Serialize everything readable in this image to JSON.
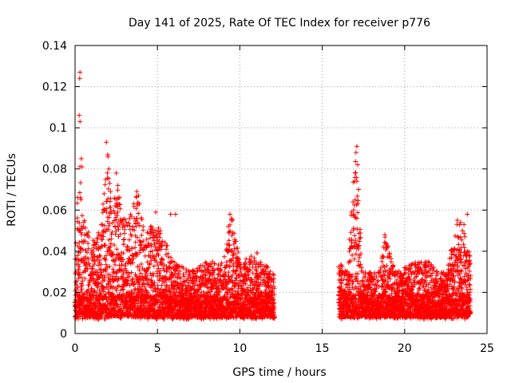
{
  "chart_data": {
    "type": "scatter",
    "title": "Day 141 of 2025, Rate Of TEC Index for receiver p776",
    "xlabel": "GPS time / hours",
    "ylabel": "ROTI / TECUs",
    "xlim": [
      0,
      25
    ],
    "ylim": [
      0,
      0.14
    ],
    "xticks": [
      0,
      5,
      10,
      15,
      20,
      25
    ],
    "yticks": [
      0,
      0.02,
      0.04,
      0.06,
      0.08,
      0.1,
      0.12,
      0.14
    ],
    "xtick_labels": [
      "0",
      "5",
      "10",
      "15",
      "20",
      "25"
    ],
    "ytick_labels": [
      "0",
      "0.02",
      "0.04",
      "0.06",
      "0.08",
      "0.1",
      "0.12",
      "0.14"
    ],
    "grid": true,
    "marker": "+",
    "color": "#ff0000",
    "series": [
      {
        "name": "ROTI",
        "x_step": 0.0833,
        "segments": [
          {
            "x_start": 0.0,
            "x_end": 12.1
          },
          {
            "x_start": 16.0,
            "x_end": 24.0
          }
        ],
        "envelope": [
          [
            0.0,
            0.045
          ],
          [
            0.3,
            0.085
          ],
          [
            0.4,
            0.06
          ],
          [
            1.0,
            0.045
          ],
          [
            1.5,
            0.05
          ],
          [
            2.0,
            0.09
          ],
          [
            2.2,
            0.06
          ],
          [
            2.5,
            0.075
          ],
          [
            3.0,
            0.055
          ],
          [
            3.8,
            0.068
          ],
          [
            4.2,
            0.05
          ],
          [
            5.0,
            0.055
          ],
          [
            6.0,
            0.035
          ],
          [
            7.0,
            0.03
          ],
          [
            8.0,
            0.035
          ],
          [
            9.0,
            0.035
          ],
          [
            9.5,
            0.058
          ],
          [
            10.0,
            0.035
          ],
          [
            11.0,
            0.04
          ],
          [
            12.0,
            0.03
          ],
          [
            16.0,
            0.035
          ],
          [
            16.5,
            0.03
          ],
          [
            17.0,
            0.09
          ],
          [
            17.5,
            0.03
          ],
          [
            18.5,
            0.03
          ],
          [
            18.8,
            0.048
          ],
          [
            19.5,
            0.03
          ],
          [
            20.5,
            0.035
          ],
          [
            21.5,
            0.035
          ],
          [
            22.5,
            0.03
          ],
          [
            23.3,
            0.058
          ],
          [
            24.0,
            0.04
          ]
        ],
        "peaks": [
          {
            "x": 0.3,
            "y": 0.127
          },
          {
            "x": 0.28,
            "y": 0.124
          },
          {
            "x": 0.25,
            "y": 0.106
          },
          {
            "x": 0.3,
            "y": 0.103
          },
          {
            "x": 0.38,
            "y": 0.085
          },
          {
            "x": 0.42,
            "y": 0.081
          },
          {
            "x": 1.9,
            "y": 0.093
          },
          {
            "x": 2.0,
            "y": 0.086
          },
          {
            "x": 2.05,
            "y": 0.08
          },
          {
            "x": 2.1,
            "y": 0.073
          },
          {
            "x": 2.15,
            "y": 0.069
          },
          {
            "x": 2.5,
            "y": 0.078
          },
          {
            "x": 2.6,
            "y": 0.072
          },
          {
            "x": 3.75,
            "y": 0.069
          },
          {
            "x": 3.85,
            "y": 0.067
          },
          {
            "x": 3.9,
            "y": 0.063
          },
          {
            "x": 4.9,
            "y": 0.059
          },
          {
            "x": 5.8,
            "y": 0.058
          },
          {
            "x": 9.4,
            "y": 0.058
          },
          {
            "x": 9.5,
            "y": 0.055
          },
          {
            "x": 9.3,
            "y": 0.052
          },
          {
            "x": 17.1,
            "y": 0.091
          },
          {
            "x": 17.05,
            "y": 0.088
          },
          {
            "x": 17.15,
            "y": 0.082
          },
          {
            "x": 17.0,
            "y": 0.078
          },
          {
            "x": 17.1,
            "y": 0.074
          },
          {
            "x": 17.2,
            "y": 0.07
          },
          {
            "x": 17.0,
            "y": 0.065
          },
          {
            "x": 16.9,
            "y": 0.06
          },
          {
            "x": 17.1,
            "y": 0.056
          },
          {
            "x": 16.95,
            "y": 0.044
          },
          {
            "x": 17.2,
            "y": 0.042
          },
          {
            "x": 18.8,
            "y": 0.048
          },
          {
            "x": 18.85,
            "y": 0.044
          },
          {
            "x": 23.2,
            "y": 0.055
          },
          {
            "x": 23.4,
            "y": 0.054
          },
          {
            "x": 23.6,
            "y": 0.053
          },
          {
            "x": 23.8,
            "y": 0.058
          },
          {
            "x": 23.5,
            "y": 0.05
          },
          {
            "x": 6.1,
            "y": 0.058
          },
          {
            "x": 1.7,
            "y": 0.05
          }
        ],
        "y_floor": 0.003
      }
    ]
  }
}
